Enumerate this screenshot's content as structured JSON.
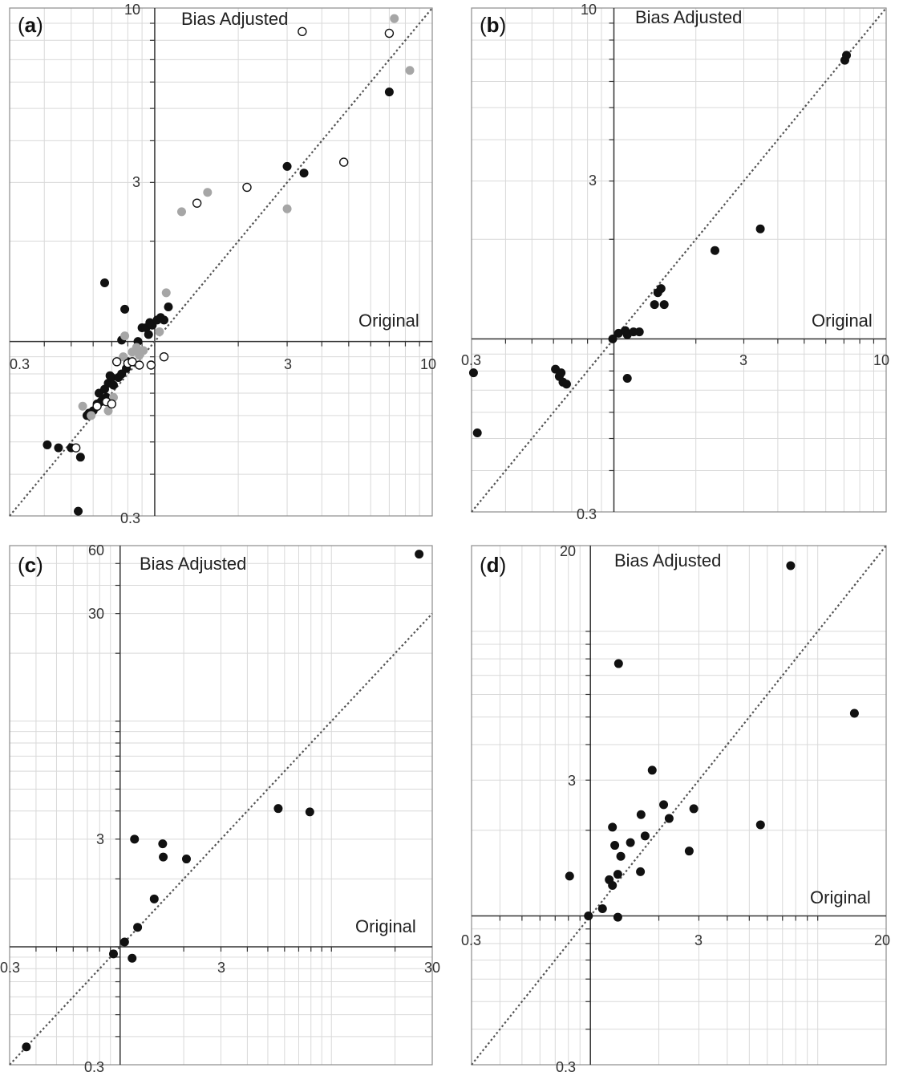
{
  "chart_data": [
    {
      "panel": "a",
      "type": "scatter",
      "title": "Bias Adjusted",
      "xlabel": "Original",
      "xscale": "log",
      "yscale": "log",
      "xlim": [
        0.3,
        10
      ],
      "ylim": [
        0.3,
        10
      ],
      "xtick_labels": [
        "0.3",
        "3",
        "10"
      ],
      "ytick_labels": [
        "0.3",
        "3",
        "10"
      ],
      "grid": true,
      "reference_line": "y = x",
      "series": [
        {
          "marker": "filled-black",
          "color": "#111111",
          "points": [
            [
              0.41,
              0.49
            ],
            [
              0.45,
              0.48
            ],
            [
              0.5,
              0.48
            ],
            [
              0.53,
              0.31
            ],
            [
              0.54,
              0.45
            ],
            [
              0.57,
              0.6
            ],
            [
              0.58,
              0.61
            ],
            [
              0.6,
              0.62
            ],
            [
              0.62,
              0.65
            ],
            [
              0.63,
              0.7
            ],
            [
              0.64,
              0.66
            ],
            [
              0.65,
              0.67
            ],
            [
              0.66,
              0.72
            ],
            [
              0.67,
              0.68
            ],
            [
              0.66,
              1.5
            ],
            [
              0.68,
              0.75
            ],
            [
              0.69,
              0.79
            ],
            [
              0.7,
              0.78
            ],
            [
              0.71,
              0.74
            ],
            [
              0.74,
              0.78
            ],
            [
              0.76,
              0.8
            ],
            [
              0.76,
              1.01
            ],
            [
              0.78,
              1.25
            ],
            [
              0.79,
              0.83
            ],
            [
              0.8,
              0.87
            ],
            [
              0.87,
              1.0
            ],
            [
              0.9,
              1.1
            ],
            [
              0.93,
              1.1
            ],
            [
              0.95,
              1.05
            ],
            [
              0.96,
              1.14
            ],
            [
              0.98,
              1.12
            ],
            [
              1.02,
              1.16
            ],
            [
              1.05,
              1.18
            ],
            [
              1.08,
              1.16
            ],
            [
              1.12,
              1.27
            ],
            [
              3.0,
              3.35
            ],
            [
              3.45,
              3.2
            ],
            [
              7.0,
              5.6
            ]
          ]
        },
        {
          "marker": "filled-gray",
          "color": "#a6a6a6",
          "points": [
            [
              0.55,
              0.64
            ],
            [
              0.59,
              0.6
            ],
            [
              0.68,
              0.62
            ],
            [
              0.71,
              0.68
            ],
            [
              0.77,
              0.9
            ],
            [
              0.78,
              1.04
            ],
            [
              0.83,
              0.93
            ],
            [
              0.86,
              0.96
            ],
            [
              0.88,
              0.91
            ],
            [
              0.91,
              0.94
            ],
            [
              1.04,
              1.07
            ],
            [
              1.1,
              1.4
            ],
            [
              1.25,
              2.45
            ],
            [
              1.55,
              2.8
            ],
            [
              3.0,
              2.5
            ],
            [
              7.3,
              9.3
            ],
            [
              8.3,
              6.5
            ]
          ]
        },
        {
          "marker": "open-circle",
          "color": "#111111",
          "points": [
            [
              0.52,
              0.48
            ],
            [
              0.62,
              0.64
            ],
            [
              0.67,
              0.66
            ],
            [
              0.7,
              0.65
            ],
            [
              0.73,
              0.87
            ],
            [
              0.8,
              0.86
            ],
            [
              0.83,
              0.87
            ],
            [
              0.88,
              0.85
            ],
            [
              0.97,
              0.85
            ],
            [
              1.08,
              0.9
            ],
            [
              1.42,
              2.6
            ],
            [
              2.15,
              2.9
            ],
            [
              3.4,
              8.5
            ],
            [
              4.8,
              3.45
            ],
            [
              7.0,
              8.4
            ]
          ]
        }
      ]
    },
    {
      "panel": "b",
      "type": "scatter",
      "title": "Bias Adjusted",
      "xlabel": "Original",
      "xscale": "log",
      "yscale": "log",
      "xlim": [
        0.3,
        10
      ],
      "ylim": [
        0.3,
        10
      ],
      "xtick_labels": [
        "0.3",
        "3",
        "10"
      ],
      "ytick_labels": [
        "0.3",
        "3",
        "10"
      ],
      "grid": true,
      "reference_line": "y = x",
      "series": [
        {
          "marker": "filled-black",
          "color": "#111111",
          "points": [
            [
              0.305,
              0.79
            ],
            [
              0.315,
              0.52
            ],
            [
              0.61,
              0.81
            ],
            [
              0.63,
              0.77
            ],
            [
              0.64,
              0.79
            ],
            [
              0.65,
              0.74
            ],
            [
              0.67,
              0.73
            ],
            [
              0.99,
              1.0
            ],
            [
              1.04,
              1.04
            ],
            [
              1.1,
              1.06
            ],
            [
              1.12,
              1.03
            ],
            [
              1.12,
              0.76
            ],
            [
              1.18,
              1.05
            ],
            [
              1.24,
              1.05
            ],
            [
              1.41,
              1.27
            ],
            [
              1.45,
              1.38
            ],
            [
              1.49,
              1.42
            ],
            [
              1.53,
              1.27
            ],
            [
              2.35,
              1.85
            ],
            [
              3.45,
              2.15
            ],
            [
              7.05,
              6.95
            ],
            [
              7.15,
              7.2
            ]
          ]
        }
      ]
    },
    {
      "panel": "c",
      "type": "scatter",
      "title": "Bias Adjusted",
      "xlabel": "Original",
      "xscale": "log",
      "yscale": "log",
      "xlim": [
        0.3,
        30
      ],
      "ylim": [
        0.3,
        60
      ],
      "xtick_labels": [
        "0.3",
        "3",
        "30"
      ],
      "ytick_labels": [
        "0.3",
        "3",
        "30",
        "60"
      ],
      "grid": true,
      "reference_line": "y = x",
      "series": [
        {
          "marker": "filled-black",
          "color": "#111111",
          "points": [
            [
              0.36,
              0.36
            ],
            [
              0.93,
              0.93
            ],
            [
              1.05,
              1.05
            ],
            [
              1.14,
              0.89
            ],
            [
              1.17,
              3.0
            ],
            [
              1.21,
              1.22
            ],
            [
              1.45,
              1.63
            ],
            [
              1.59,
              2.86
            ],
            [
              1.6,
              2.5
            ],
            [
              2.06,
              2.45
            ],
            [
              5.6,
              4.1
            ],
            [
              7.9,
              3.96
            ],
            [
              26.0,
              55.0
            ]
          ]
        }
      ]
    },
    {
      "panel": "d",
      "type": "scatter",
      "title": "Bias Adjusted",
      "xlabel": "Original",
      "xscale": "log",
      "yscale": "log",
      "xlim": [
        0.3,
        20
      ],
      "ylim": [
        0.3,
        20
      ],
      "xtick_labels": [
        "0.3",
        "3",
        "20"
      ],
      "ytick_labels": [
        "0.3",
        "3",
        "20"
      ],
      "grid": true,
      "reference_line": "y = x",
      "series": [
        {
          "marker": "filled-black",
          "color": "#111111",
          "points": [
            [
              0.81,
              1.38
            ],
            [
              0.98,
              1.0
            ],
            [
              1.13,
              1.06
            ],
            [
              1.21,
              1.34
            ],
            [
              1.25,
              2.05
            ],
            [
              1.25,
              1.28
            ],
            [
              1.28,
              1.77
            ],
            [
              1.32,
              0.99
            ],
            [
              1.32,
              1.4
            ],
            [
              1.33,
              7.7
            ],
            [
              1.36,
              1.62
            ],
            [
              1.5,
              1.81
            ],
            [
              1.66,
              1.43
            ],
            [
              1.67,
              2.27
            ],
            [
              1.74,
              1.91
            ],
            [
              1.87,
              3.25
            ],
            [
              2.1,
              2.46
            ],
            [
              2.22,
              2.2
            ],
            [
              2.72,
              1.69
            ],
            [
              2.85,
              2.38
            ],
            [
              5.6,
              2.09
            ],
            [
              7.6,
              17.0
            ],
            [
              14.5,
              5.15
            ]
          ]
        }
      ]
    }
  ]
}
